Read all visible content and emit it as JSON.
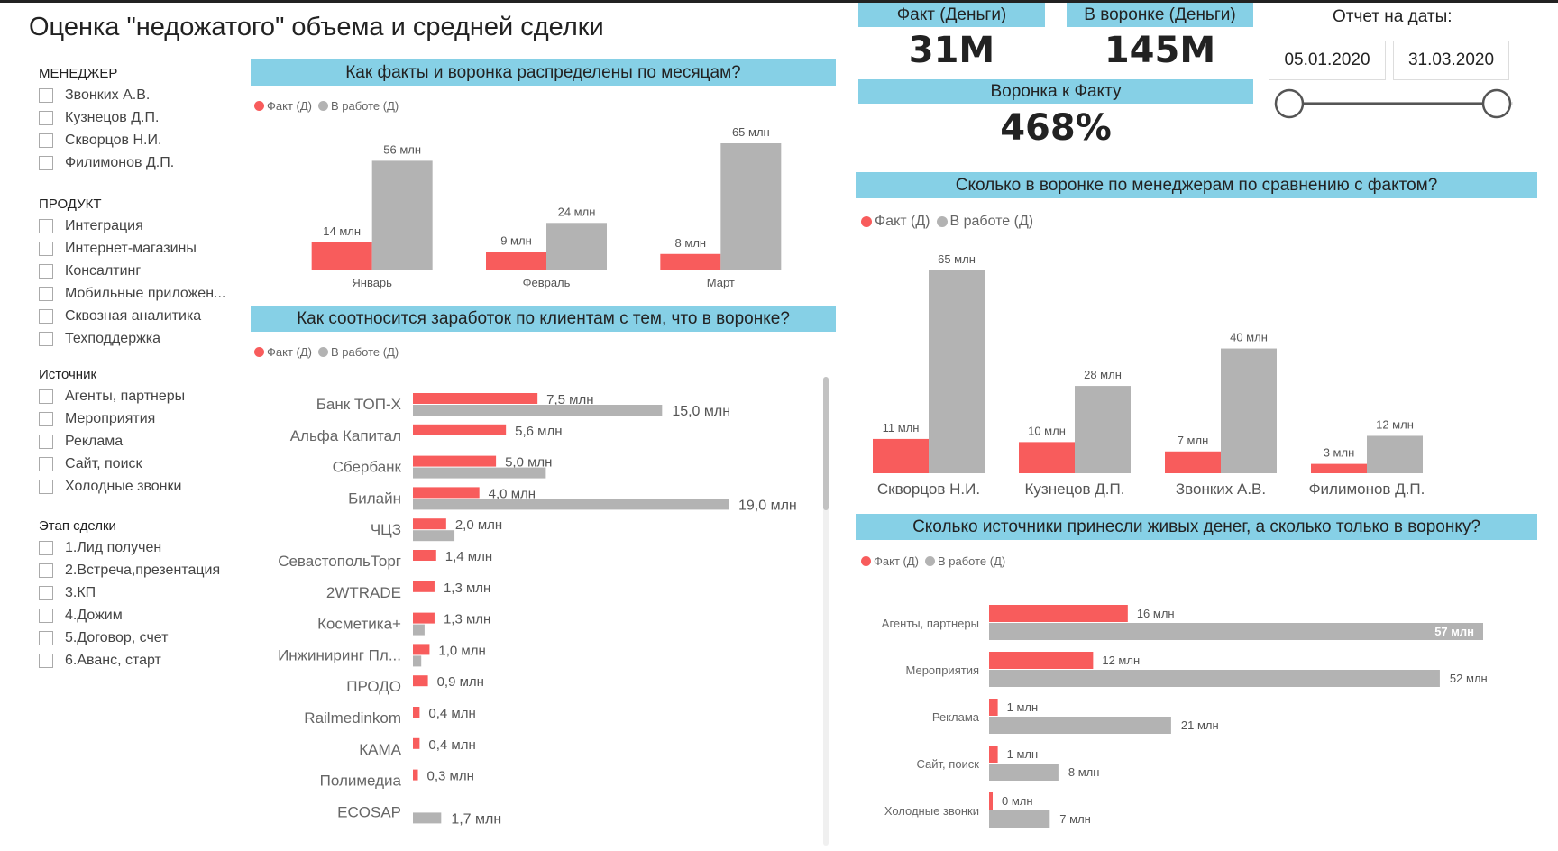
{
  "title": "Оценка \"недожатого\" объема и средней сделки",
  "colors": {
    "fact": "#f85c5c",
    "work": "#b3b3b3",
    "banner": "#86d0e6"
  },
  "legend": {
    "fact": "Факт (Д)",
    "work": "В работе (Д)"
  },
  "filters": [
    {
      "title": "МЕНЕДЖЕР",
      "items": [
        "Звонких А.В.",
        "Кузнецов Д.П.",
        "Скворцов Н.И.",
        "Филимонов Д.П."
      ]
    },
    {
      "title": "ПРОДУКТ",
      "items": [
        "Интеграция",
        "Интернет-магазины",
        "Консалтинг",
        "Мобильные приложен...",
        "Сквозная аналитика",
        "Техподдержка"
      ]
    },
    {
      "title": "Источник",
      "items": [
        "Агенты, партнеры",
        "Мероприятия",
        "Реклама",
        "Сайт, поиск",
        "Холодные звонки"
      ]
    },
    {
      "title": "Этап сделки",
      "items": [
        "1.Лид получен",
        "2.Встреча,презентация",
        "3.КП",
        "4.Дожим",
        "5.Договор, счет",
        "6.Аванс, старт"
      ]
    }
  ],
  "kpis": {
    "fact_label": "Факт (Деньги)",
    "fact_value": "31M",
    "funnel_label": "В воронке (Деньги)",
    "funnel_value": "145M",
    "ratio_label": "Воронка к Факту",
    "ratio_value": "468%"
  },
  "report": {
    "label": "Отчет на даты:",
    "date_from": "05.01.2020",
    "date_to": "31.03.2020",
    "slider_from": 0,
    "slider_to": 1
  },
  "chart_data": [
    {
      "id": "months",
      "type": "bar",
      "title": "Как факты и воронка распределены по месяцам?",
      "categories": [
        "Январь",
        "Февраль",
        "Март"
      ],
      "series": [
        {
          "name": "Факт (Д)",
          "values": [
            14,
            9,
            8
          ],
          "labels": [
            "14 млн",
            "9 млн",
            "8 млн"
          ]
        },
        {
          "name": "В работе (Д)",
          "values": [
            56,
            24,
            65
          ],
          "labels": [
            "56 млн",
            "24 млн",
            "65 млн"
          ]
        }
      ],
      "unit": "млн"
    },
    {
      "id": "clients",
      "type": "bar",
      "orientation": "horizontal",
      "title": "Как соотносится заработок по клиентам с тем, что в воронке?",
      "categories": [
        "Банк ТОП-Х",
        "Альфа Капитал",
        "Сбербанк",
        "Билайн",
        "ЧЦЗ",
        "СевастопольТорг",
        "2WTRADE",
        "Косметика+",
        "Инжиниринг Пл...",
        "ПРОДО",
        "Railmedinkom",
        "КАМА",
        "Полимедиа",
        "ECOSAP"
      ],
      "series": [
        {
          "name": "Факт (Д)",
          "values": [
            7.5,
            5.6,
            5.0,
            4.0,
            2.0,
            1.4,
            1.3,
            1.3,
            1.0,
            0.9,
            0.4,
            0.4,
            0.3,
            0
          ],
          "labels": [
            "7,5 млн",
            "5,6 млн",
            "5,0 млн",
            "4,0 млн",
            "2,0 млн",
            "1,4 млн",
            "1,3 млн",
            "1,3 млн",
            "1,0 млн",
            "0,9 млн",
            "0,4 млн",
            "0,4 млн",
            "0,3 млн",
            ""
          ]
        },
        {
          "name": "В работе (Д)",
          "values": [
            15.0,
            0,
            8.0,
            19.0,
            2.5,
            0,
            0,
            0.7,
            0.5,
            0,
            0,
            0,
            0,
            1.7
          ],
          "labels": [
            "15,0 млн",
            "",
            "",
            "19,0 млн",
            "",
            "",
            "",
            "",
            "",
            "",
            "",
            "",
            "",
            "1,7 млн"
          ]
        }
      ],
      "unit": "млн"
    },
    {
      "id": "managers",
      "type": "bar",
      "title": "Сколько в воронке по менеджерам по сравнению с фактом?",
      "categories": [
        "Скворцов Н.И.",
        "Кузнецов Д.П.",
        "Звонких А.В.",
        "Филимонов Д.П."
      ],
      "series": [
        {
          "name": "Факт (Д)",
          "values": [
            11,
            10,
            7,
            3
          ],
          "labels": [
            "11 млн",
            "10 млн",
            "7 млн",
            "3 млн"
          ]
        },
        {
          "name": "В работе (Д)",
          "values": [
            65,
            28,
            40,
            12
          ],
          "labels": [
            "65 млн",
            "28 млн",
            "40 млн",
            "12 млн"
          ]
        }
      ],
      "unit": "млн"
    },
    {
      "id": "sources",
      "type": "bar",
      "orientation": "horizontal",
      "title": "Сколько источники принесли живых денег, а сколько только в воронку?",
      "categories": [
        "Агенты, партнеры",
        "Мероприятия",
        "Реклама",
        "Сайт, поиск",
        "Холодные звонки"
      ],
      "series": [
        {
          "name": "Факт (Д)",
          "values": [
            16,
            12,
            1,
            1,
            0
          ],
          "labels": [
            "16 млн",
            "12 млн",
            "1 млн",
            "1 млн",
            "0 млн"
          ]
        },
        {
          "name": "В работе (Д)",
          "values": [
            57,
            52,
            21,
            8,
            7
          ],
          "labels": [
            "57 млн",
            "52 млн",
            "21 млн",
            "8 млн",
            "7 млн"
          ]
        }
      ],
      "unit": "млн"
    }
  ]
}
